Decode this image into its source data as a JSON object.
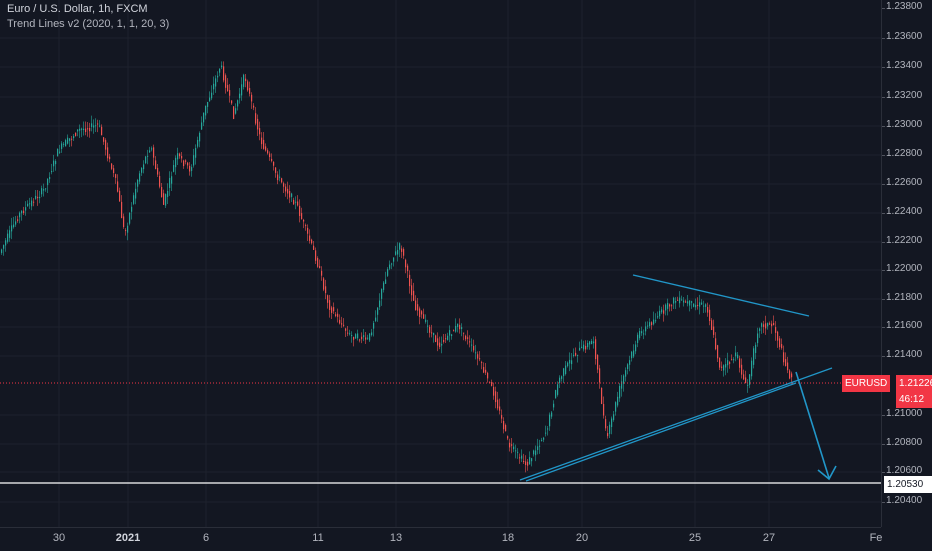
{
  "legend": {
    "title": "Euro / U.S. Dollar, 1h, FXCM",
    "indicator": "Trend Lines v2 (2020, 1, 1, 20, 3)"
  },
  "price_axis": {
    "ticks": [
      "1.23800",
      "1.23600",
      "1.23400",
      "1.23200",
      "1.23000",
      "1.22800",
      "1.22600",
      "1.22400",
      "1.22200",
      "1.22000",
      "1.21800",
      "1.21600",
      "1.21400",
      "1.21000",
      "1.20800",
      "1.20600",
      "1.20400"
    ]
  },
  "time_axis": {
    "ticks": [
      "30",
      "2021",
      "6",
      "11",
      "13",
      "18",
      "20",
      "25",
      "27",
      "Fe"
    ]
  },
  "tags": {
    "symbol": "EURUSD",
    "last_price": "1.21226",
    "countdown": "46:12",
    "level": "1.20530"
  },
  "colors": {
    "background": "#131722",
    "up_candle": "#26a69a",
    "down_candle": "#ef5350",
    "trendline": "#1e88b8",
    "price_line": "#f23645"
  },
  "icons": {
    "arrow": "arrow-down-icon"
  }
}
